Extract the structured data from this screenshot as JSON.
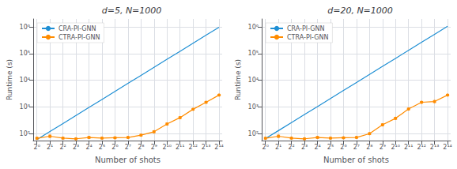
{
  "chart_data": [
    {
      "type": "line",
      "title": "d=5, N=1000",
      "xlabel": "Number of shots",
      "ylabel": "Runtime (s)",
      "log": true,
      "grid": true,
      "legend": "upper left",
      "x": [
        1,
        2,
        4,
        8,
        16,
        32,
        64,
        128,
        256,
        512,
        1024,
        2048,
        4096,
        8192,
        16384
      ],
      "xlim": [
        0.82,
        19333.12
      ],
      "xticks": [
        {
          "value": 1,
          "label": "2⁰"
        },
        {
          "value": 2,
          "label": "2¹"
        },
        {
          "value": 4,
          "label": "2²"
        },
        {
          "value": 8,
          "label": "2³"
        },
        {
          "value": 16,
          "label": "2⁴"
        },
        {
          "value": 32,
          "label": "2⁵"
        },
        {
          "value": 64,
          "label": "2⁶"
        },
        {
          "value": 128,
          "label": "2⁷"
        },
        {
          "value": 256,
          "label": "2⁸"
        },
        {
          "value": 512,
          "label": "2⁹"
        },
        {
          "value": 1024,
          "label": "2¹⁰"
        },
        {
          "value": 2048,
          "label": "2¹¹"
        },
        {
          "value": 4096,
          "label": "2¹²"
        },
        {
          "value": 8192,
          "label": "2¹³"
        },
        {
          "value": 16384,
          "label": "2¹⁴"
        }
      ],
      "ylim": [
        55,
        2000000
      ],
      "yticks": [
        {
          "value": 100,
          "label": "10²"
        },
        {
          "value": 1000,
          "label": "10³"
        },
        {
          "value": 10000,
          "label": "10⁴"
        },
        {
          "value": 100000,
          "label": "10⁵"
        },
        {
          "value": 1000000,
          "label": "10⁶"
        }
      ],
      "series": [
        {
          "name": "CRA-PI-GNN",
          "color": "#1f8fd4",
          "marker": "none",
          "line_style": "solid",
          "values": [
            60,
            120,
            240,
            480,
            960,
            1920,
            3840,
            7680,
            15360,
            30720,
            61440,
            122880,
            245760,
            491520,
            983040
          ]
        },
        {
          "name": "CTRA-PI-GNN",
          "color": "#ff8c00",
          "marker": "o",
          "line_style": "solid",
          "values": [
            67,
            80,
            68,
            64,
            72,
            68,
            70,
            72,
            88,
            118,
            230,
            400,
            820,
            1500,
            2800
          ],
          "errors": [
            5,
            8,
            5,
            4,
            6,
            5,
            5,
            5,
            7,
            10,
            20,
            30,
            55,
            110,
            180
          ]
        }
      ]
    },
    {
      "type": "line",
      "title": "d=20, N=1000",
      "xlabel": "Number of shots",
      "ylabel": "Runtime (s)",
      "log": true,
      "grid": true,
      "legend": "upper left",
      "x": [
        1,
        2,
        4,
        8,
        16,
        32,
        64,
        128,
        256,
        512,
        1024,
        2048,
        4096,
        8192,
        16384
      ],
      "xlim": [
        0.82,
        19333.12
      ],
      "xticks": [
        {
          "value": 1,
          "label": "2⁰"
        },
        {
          "value": 2,
          "label": "2¹"
        },
        {
          "value": 4,
          "label": "2²"
        },
        {
          "value": 8,
          "label": "2³"
        },
        {
          "value": 16,
          "label": "2⁴"
        },
        {
          "value": 32,
          "label": "2⁵"
        },
        {
          "value": 64,
          "label": "2⁶"
        },
        {
          "value": 128,
          "label": "2⁷"
        },
        {
          "value": 256,
          "label": "2⁸"
        },
        {
          "value": 512,
          "label": "2⁹"
        },
        {
          "value": 1024,
          "label": "2¹⁰"
        },
        {
          "value": 2048,
          "label": "2¹¹"
        },
        {
          "value": 4096,
          "label": "2¹²"
        },
        {
          "value": 8192,
          "label": "2¹³"
        },
        {
          "value": 16384,
          "label": "2¹⁴"
        }
      ],
      "ylim": [
        55,
        2000000
      ],
      "yticks": [
        {
          "value": 100,
          "label": "10²"
        },
        {
          "value": 1000,
          "label": "10³"
        },
        {
          "value": 10000,
          "label": "10⁴"
        },
        {
          "value": 100000,
          "label": "10⁵"
        },
        {
          "value": 1000000,
          "label": "10⁶"
        }
      ],
      "series": [
        {
          "name": "CRA-PI-GNN",
          "color": "#1f8fd4",
          "marker": "none",
          "line_style": "solid",
          "values": [
            65,
            130,
            260,
            520,
            1040,
            2080,
            4160,
            8320,
            16640,
            33280,
            66560,
            133120,
            266240,
            532480,
            1064960
          ]
        },
        {
          "name": "CTRA-PI-GNN",
          "color": "#ff8c00",
          "marker": "o",
          "line_style": "solid",
          "values": [
            67,
            80,
            68,
            64,
            72,
            68,
            70,
            72,
            100,
            215,
            375,
            840,
            1500,
            1600,
            2800
          ],
          "errors": [
            5,
            8,
            5,
            4,
            6,
            5,
            5,
            5,
            8,
            18,
            32,
            55,
            110,
            140,
            180
          ]
        }
      ]
    }
  ]
}
